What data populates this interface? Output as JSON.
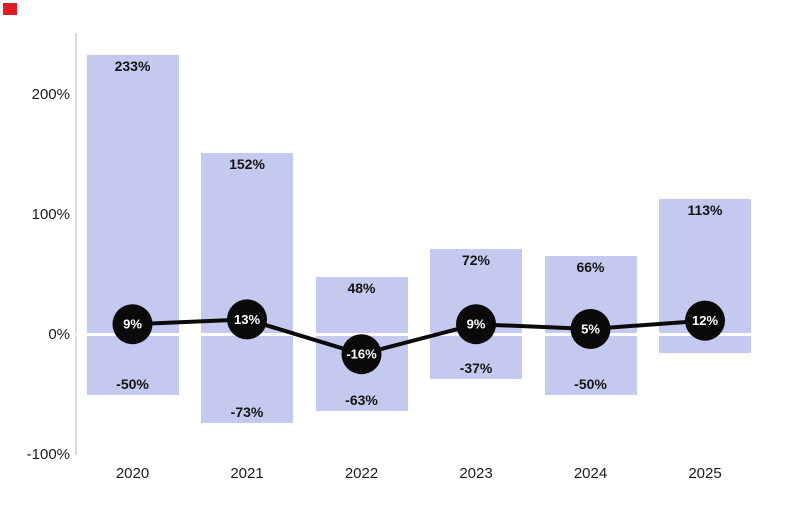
{
  "chart_data": {
    "type": "bar",
    "subtype": "floating-range-bars-with-line-overlay",
    "title": "",
    "xlabel": "",
    "ylabel": "",
    "categories": [
      "2020",
      "2021",
      "2022",
      "2023",
      "2024",
      "2025"
    ],
    "series": [
      {
        "name": "range-high",
        "values": [
          233,
          152,
          48,
          72,
          66,
          113
        ],
        "labels": [
          "233%",
          "152%",
          "48%",
          "72%",
          "66%",
          "113%"
        ]
      },
      {
        "name": "range-low",
        "values": [
          -50,
          -73,
          -63,
          -37,
          -50,
          -15
        ],
        "labels": [
          "-50%",
          "-73%",
          "-63%",
          "-37%",
          "-50%",
          ""
        ]
      },
      {
        "name": "line-markers",
        "values": [
          9,
          13,
          -16,
          9,
          5,
          12
        ],
        "labels": [
          "9%",
          "13%",
          "-16%",
          "9%",
          "5%",
          "12%"
        ]
      }
    ],
    "y_axis": {
      "ticks": [
        {
          "label": "200%",
          "value": 200
        },
        {
          "label": "100%",
          "value": 100
        },
        {
          "label": "0%",
          "value": 0
        },
        {
          "label": "-100%",
          "value": -100
        }
      ],
      "range": [
        -100,
        252
      ]
    },
    "legend": "none",
    "grid": "white zero-line over bars only",
    "colors": {
      "bar_fill": "#c4caef",
      "line": "#0a0a0a",
      "marker_fill": "#0a0a0a",
      "marker_text": "#ffffff",
      "zero_line": "#ffffff",
      "axis_line": "#dcdcdc",
      "text": "#1b1b1b",
      "background": "#ffffff",
      "corner_marker": "#dc1d21"
    }
  }
}
